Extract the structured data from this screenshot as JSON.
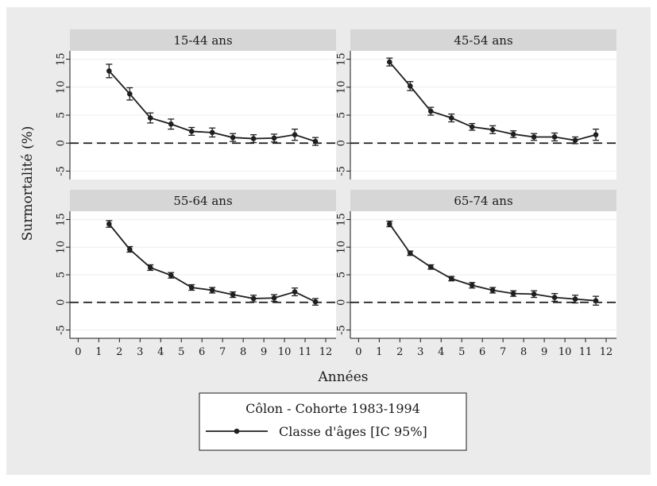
{
  "chart_data": {
    "type": "line",
    "ylabel": "Surmortalité (%)",
    "xlabel": "Années",
    "x_ticks": [
      0,
      1,
      2,
      3,
      4,
      5,
      6,
      7,
      8,
      9,
      10,
      11,
      12
    ],
    "y_ticks": [
      -5,
      0,
      5,
      10,
      15
    ],
    "xlim": [
      -0.4,
      12.5
    ],
    "ylim": [
      -6.5,
      16.5
    ],
    "reference_line_y": 0,
    "legend": {
      "title": "Côlon - Cohorte 1983-1994",
      "series_label": "Classe d'âges [IC 95%]",
      "placement": "bottom-center"
    },
    "colors": {
      "background": "#ebebeb",
      "plot": "#ffffff",
      "strip": "#d6d6d6",
      "line": "#1f1f1f"
    },
    "panels": [
      {
        "title": "15-44 ans",
        "x": [
          1.5,
          2.5,
          3.5,
          4.5,
          5.5,
          6.5,
          7.5,
          8.5,
          9.5,
          10.5,
          11.5
        ],
        "y": [
          12.9,
          8.8,
          4.5,
          3.4,
          2.1,
          1.9,
          1.0,
          0.8,
          0.9,
          1.5,
          0.3
        ],
        "ci_low": [
          11.7,
          7.7,
          3.6,
          2.5,
          1.4,
          1.1,
          0.3,
          0.1,
          0.2,
          0.5,
          -0.4
        ],
        "ci_high": [
          14.1,
          9.9,
          5.4,
          4.3,
          2.8,
          2.7,
          1.7,
          1.5,
          1.6,
          2.5,
          1.0
        ]
      },
      {
        "title": "45-54 ans",
        "x": [
          1.5,
          2.5,
          3.5,
          4.5,
          5.5,
          6.5,
          7.5,
          8.5,
          9.5,
          10.5,
          11.5
        ],
        "y": [
          14.5,
          10.2,
          5.7,
          4.5,
          2.9,
          2.4,
          1.6,
          1.1,
          1.1,
          0.5,
          1.5
        ],
        "ci_low": [
          13.8,
          9.4,
          5.0,
          3.8,
          2.3,
          1.7,
          1.0,
          0.5,
          0.4,
          -0.1,
          0.5
        ],
        "ci_high": [
          15.2,
          11.0,
          6.4,
          5.2,
          3.5,
          3.1,
          2.2,
          1.7,
          1.8,
          1.1,
          2.5
        ]
      },
      {
        "title": "55-64 ans",
        "x": [
          1.5,
          2.5,
          3.5,
          4.5,
          5.5,
          6.5,
          7.5,
          8.5,
          9.5,
          10.5,
          11.5
        ],
        "y": [
          14.2,
          9.6,
          6.3,
          4.9,
          2.7,
          2.2,
          1.4,
          0.7,
          0.8,
          1.9,
          0.1
        ],
        "ci_low": [
          13.6,
          9.1,
          5.8,
          4.4,
          2.2,
          1.7,
          0.9,
          0.1,
          0.2,
          1.2,
          -0.5
        ],
        "ci_high": [
          14.8,
          10.1,
          6.8,
          5.4,
          3.2,
          2.7,
          1.9,
          1.3,
          1.4,
          2.6,
          0.7
        ]
      },
      {
        "title": "65-74 ans",
        "x": [
          1.5,
          2.5,
          3.5,
          4.5,
          5.5,
          6.5,
          7.5,
          8.5,
          9.5,
          10.5,
          11.5
        ],
        "y": [
          14.2,
          8.9,
          6.4,
          4.3,
          3.1,
          2.2,
          1.6,
          1.5,
          0.9,
          0.6,
          0.3
        ],
        "ci_low": [
          13.7,
          8.5,
          6.0,
          3.9,
          2.6,
          1.7,
          1.1,
          0.9,
          0.2,
          -0.1,
          -0.5
        ],
        "ci_high": [
          14.7,
          9.3,
          6.8,
          4.7,
          3.6,
          2.7,
          2.1,
          2.1,
          1.6,
          1.3,
          1.1
        ]
      }
    ]
  }
}
